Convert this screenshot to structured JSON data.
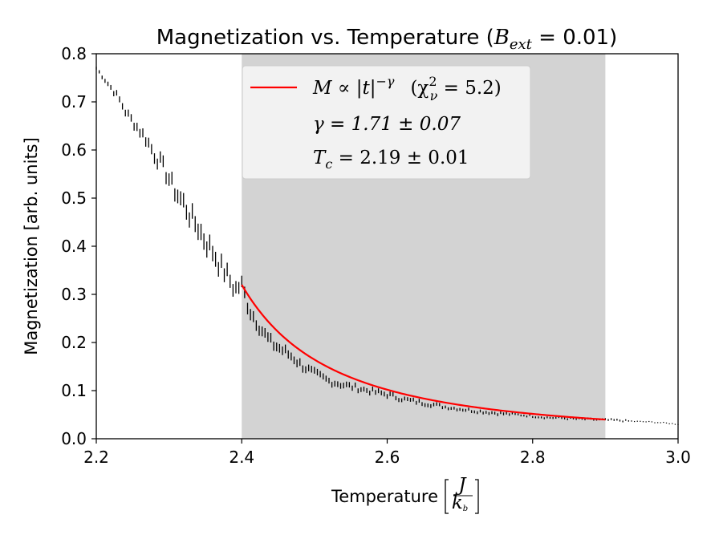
{
  "chart_data": {
    "type": "scatter",
    "title": {
      "main": "Magnetization vs. Temperature (",
      "sym": "B",
      "sub": "ext",
      "rest": " = 0.01)"
    },
    "xlabel": {
      "text": "Temperature",
      "frac_num": "J",
      "frac_den": "k",
      "frac_den_sub": "b"
    },
    "ylabel": "Magnetization [arb. units]",
    "xlim": [
      2.2,
      3.0
    ],
    "ylim": [
      0.0,
      0.8
    ],
    "xticks": [
      "2.2",
      "2.4",
      "2.6",
      "2.8",
      "3.0"
    ],
    "yticks": [
      "0.0",
      "0.1",
      "0.2",
      "0.3",
      "0.4",
      "0.5",
      "0.6",
      "0.7",
      "0.8"
    ],
    "shaded_region": {
      "x": [
        2.4,
        2.9
      ],
      "color": "#d3d3d3"
    },
    "fit": {
      "color": "#ff0000",
      "x_range": [
        2.4,
        2.9
      ],
      "Tc": 2.19,
      "gamma": 1.71,
      "legend_line1": {
        "a": "M ∝ |t|",
        "sup": "−γ",
        "b": "(χ",
        "b_sup": "2",
        "b_sub": "ν",
        "c": " = 5.2)"
      },
      "legend_line2": "γ = 1.71 ± 0.07",
      "legend_line3": {
        "a": "T",
        "sub": "c",
        "b": " = 2.19 ± 0.01"
      }
    },
    "series": [
      {
        "marker_color": "#000000",
        "x": [
          2.2,
          2.21,
          2.22,
          2.23,
          2.24,
          2.25,
          2.26,
          2.27,
          2.28,
          2.29,
          2.3,
          2.31,
          2.32,
          2.33,
          2.34,
          2.35,
          2.36,
          2.37,
          2.38,
          2.39,
          2.4,
          2.41,
          2.42,
          2.43,
          2.44,
          2.45,
          2.46,
          2.47,
          2.48,
          2.49,
          2.5,
          2.52,
          2.54,
          2.56,
          2.58,
          2.6,
          2.62,
          2.64,
          2.66,
          2.68,
          2.7,
          2.72,
          2.74,
          2.76,
          2.78,
          2.8,
          2.82,
          2.84,
          2.86,
          2.88,
          2.9,
          2.92,
          2.94,
          2.96,
          2.98,
          3.0
        ],
        "y": [
          0.77,
          0.75,
          0.73,
          0.71,
          0.68,
          0.66,
          0.64,
          0.62,
          0.59,
          0.57,
          0.54,
          0.51,
          0.49,
          0.46,
          0.44,
          0.41,
          0.39,
          0.36,
          0.34,
          0.31,
          0.32,
          0.27,
          0.245,
          0.22,
          0.2,
          0.19,
          0.18,
          0.17,
          0.155,
          0.145,
          0.135,
          0.12,
          0.112,
          0.105,
          0.098,
          0.092,
          0.083,
          0.077,
          0.072,
          0.066,
          0.062,
          0.058,
          0.055,
          0.052,
          0.05,
          0.047,
          0.044,
          0.043,
          0.041,
          0.04,
          0.039,
          0.038,
          0.036,
          0.035,
          0.033,
          0.03
        ],
        "yerr": [
          0.003,
          0.004,
          0.005,
          0.006,
          0.007,
          0.008,
          0.009,
          0.01,
          0.011,
          0.012,
          0.013,
          0.014,
          0.015,
          0.016,
          0.017,
          0.017,
          0.016,
          0.015,
          0.014,
          0.013,
          0.012,
          0.012,
          0.011,
          0.01,
          0.01,
          0.009,
          0.009,
          0.008,
          0.008,
          0.007,
          0.007,
          0.006,
          0.006,
          0.005,
          0.005,
          0.005,
          0.004,
          0.004,
          0.004,
          0.003,
          0.003,
          0.003,
          0.003,
          0.003,
          0.002,
          0.002,
          0.002,
          0.002,
          0.002,
          0.002,
          0.002,
          0.002,
          0.001,
          0.001,
          0.001,
          0.001
        ]
      }
    ]
  }
}
